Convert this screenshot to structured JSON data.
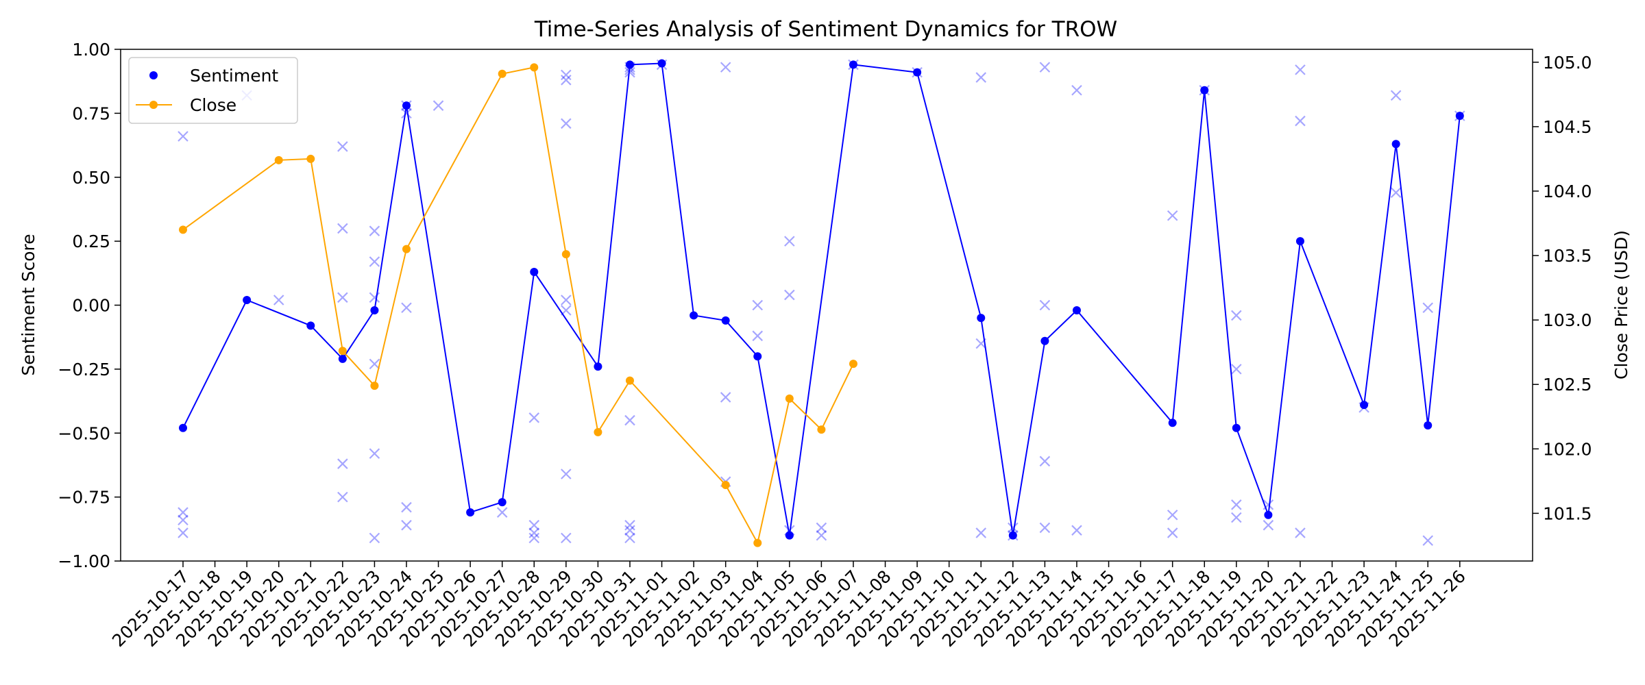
{
  "chart_data": {
    "type": "line",
    "title": "Time-Series Analysis of Sentiment Dynamics for TROW",
    "xlabel": "",
    "ylabel": "Sentiment Score",
    "y2label": "Close Price (USD)",
    "ylim": [
      -1.0,
      1.0
    ],
    "y2lim": [
      101.13,
      105.1
    ],
    "yticks": [
      -1.0,
      -0.75,
      -0.5,
      -0.25,
      0.0,
      0.25,
      0.5,
      0.75,
      1.0
    ],
    "yticklabels": [
      "−1.00",
      "−0.75",
      "−0.50",
      "−0.25",
      "0.00",
      "0.25",
      "0.50",
      "0.75",
      "1.00"
    ],
    "y2ticks": [
      101.5,
      102.0,
      102.5,
      103.0,
      103.5,
      104.0,
      104.5,
      105.0
    ],
    "y2ticklabels": [
      "101.5",
      "102.0",
      "102.5",
      "103.0",
      "103.5",
      "104.0",
      "104.5",
      "105.0"
    ],
    "categories": [
      "2025-10-17",
      "2025-10-18",
      "2025-10-19",
      "2025-10-20",
      "2025-10-21",
      "2025-10-22",
      "2025-10-23",
      "2025-10-24",
      "2025-10-25",
      "2025-10-26",
      "2025-10-27",
      "2025-10-28",
      "2025-10-29",
      "2025-10-30",
      "2025-10-31",
      "2025-11-01",
      "2025-11-02",
      "2025-11-03",
      "2025-11-04",
      "2025-11-05",
      "2025-11-06",
      "2025-11-07",
      "2025-11-08",
      "2025-11-09",
      "2025-11-10",
      "2025-11-11",
      "2025-11-12",
      "2025-11-13",
      "2025-11-14",
      "2025-11-15",
      "2025-11-16",
      "2025-11-17",
      "2025-11-18",
      "2025-11-19",
      "2025-11-20",
      "2025-11-21",
      "2025-11-22",
      "2025-11-23",
      "2025-11-24",
      "2025-11-25",
      "2025-11-26"
    ],
    "grid": false,
    "legend_position": "upper left",
    "series": [
      {
        "name": "Sentiment",
        "axis": "left",
        "color": "#0000ff",
        "style": "line-with-dots",
        "points": [
          [
            "2025-10-17",
            -0.48
          ],
          [
            "2025-10-19",
            0.02
          ],
          [
            "2025-10-21",
            -0.08
          ],
          [
            "2025-10-22",
            -0.21
          ],
          [
            "2025-10-23",
            -0.02
          ],
          [
            "2025-10-24",
            0.78
          ],
          [
            "2025-10-26",
            -0.81
          ],
          [
            "2025-10-27",
            -0.77
          ],
          [
            "2025-10-28",
            0.13
          ],
          [
            "2025-10-30",
            -0.24
          ],
          [
            "2025-10-31",
            0.94
          ],
          [
            "2025-11-01",
            0.945
          ],
          [
            "2025-11-02",
            -0.04
          ],
          [
            "2025-11-03",
            -0.06
          ],
          [
            "2025-11-04",
            -0.2
          ],
          [
            "2025-11-05",
            -0.9
          ],
          [
            "2025-11-07",
            0.94
          ],
          [
            "2025-11-09",
            0.91
          ],
          [
            "2025-11-11",
            -0.05
          ],
          [
            "2025-11-12",
            -0.9
          ],
          [
            "2025-11-13",
            -0.14
          ],
          [
            "2025-11-14",
            -0.02
          ],
          [
            "2025-11-17",
            -0.46
          ],
          [
            "2025-11-18",
            0.84
          ],
          [
            "2025-11-19",
            -0.48
          ],
          [
            "2025-11-20",
            -0.82
          ],
          [
            "2025-11-21",
            0.25
          ],
          [
            "2025-11-23",
            -0.39
          ],
          [
            "2025-11-24",
            0.63
          ],
          [
            "2025-11-25",
            -0.47
          ],
          [
            "2025-11-26",
            0.74
          ]
        ]
      },
      {
        "name": "Close",
        "axis": "right",
        "color": "#ffa500",
        "style": "line-with-dots",
        "points": [
          [
            "2025-10-17",
            103.7
          ],
          [
            "2025-10-20",
            104.24
          ],
          [
            "2025-10-21",
            104.25
          ],
          [
            "2025-10-22",
            102.76
          ],
          [
            "2025-10-23",
            102.49
          ],
          [
            "2025-10-24",
            103.55
          ],
          [
            "2025-10-27",
            104.91
          ],
          [
            "2025-10-28",
            104.96
          ],
          [
            "2025-10-29",
            103.51
          ],
          [
            "2025-10-30",
            102.13
          ],
          [
            "2025-10-31",
            102.53
          ],
          [
            "2025-11-03",
            101.72
          ],
          [
            "2025-11-04",
            101.27
          ],
          [
            "2025-11-05",
            102.39
          ],
          [
            "2025-11-06",
            102.15
          ],
          [
            "2025-11-07",
            102.66
          ]
        ]
      }
    ],
    "raw_scores": {
      "marker": "x",
      "color": "#0000ff",
      "opacity": 0.35,
      "points": [
        [
          "2025-10-17",
          0.66
        ],
        [
          "2025-10-17",
          -0.81
        ],
        [
          "2025-10-17",
          -0.84
        ],
        [
          "2025-10-17",
          -0.89
        ],
        [
          "2025-10-19",
          0.82
        ],
        [
          "2025-10-20",
          0.02
        ],
        [
          "2025-10-22",
          0.62
        ],
        [
          "2025-10-22",
          0.3
        ],
        [
          "2025-10-22",
          0.03
        ],
        [
          "2025-10-22",
          -0.62
        ],
        [
          "2025-10-22",
          -0.75
        ],
        [
          "2025-10-23",
          0.29
        ],
        [
          "2025-10-23",
          0.17
        ],
        [
          "2025-10-23",
          0.03
        ],
        [
          "2025-10-23",
          -0.23
        ],
        [
          "2025-10-23",
          -0.58
        ],
        [
          "2025-10-23",
          -0.91
        ],
        [
          "2025-10-24",
          0.78
        ],
        [
          "2025-10-24",
          0.75
        ],
        [
          "2025-10-24",
          -0.01
        ],
        [
          "2025-10-24",
          -0.79
        ],
        [
          "2025-10-24",
          -0.86
        ],
        [
          "2025-10-25",
          0.78
        ],
        [
          "2025-10-27",
          -0.81
        ],
        [
          "2025-10-28",
          -0.44
        ],
        [
          "2025-10-28",
          -0.86
        ],
        [
          "2025-10-28",
          -0.89
        ],
        [
          "2025-10-28",
          -0.91
        ],
        [
          "2025-10-29",
          0.9
        ],
        [
          "2025-10-29",
          0.88
        ],
        [
          "2025-10-29",
          0.71
        ],
        [
          "2025-10-29",
          0.02
        ],
        [
          "2025-10-29",
          -0.02
        ],
        [
          "2025-10-29",
          -0.66
        ],
        [
          "2025-10-29",
          -0.91
        ],
        [
          "2025-10-31",
          0.93
        ],
        [
          "2025-10-31",
          0.92
        ],
        [
          "2025-10-31",
          0.91
        ],
        [
          "2025-10-31",
          -0.45
        ],
        [
          "2025-10-31",
          -0.86
        ],
        [
          "2025-10-31",
          -0.88
        ],
        [
          "2025-10-31",
          -0.91
        ],
        [
          "2025-11-01",
          0.94
        ],
        [
          "2025-11-03",
          0.93
        ],
        [
          "2025-11-03",
          -0.36
        ],
        [
          "2025-11-03",
          -0.69
        ],
        [
          "2025-11-04",
          0.0
        ],
        [
          "2025-11-04",
          -0.12
        ],
        [
          "2025-11-05",
          0.25
        ],
        [
          "2025-11-05",
          0.04
        ],
        [
          "2025-11-05",
          -0.88
        ],
        [
          "2025-11-06",
          -0.87
        ],
        [
          "2025-11-06",
          -0.9
        ],
        [
          "2025-11-07",
          0.94
        ],
        [
          "2025-11-09",
          0.91
        ],
        [
          "2025-11-11",
          0.89
        ],
        [
          "2025-11-11",
          -0.15
        ],
        [
          "2025-11-11",
          -0.89
        ],
        [
          "2025-11-12",
          -0.87
        ],
        [
          "2025-11-12",
          -0.9
        ],
        [
          "2025-11-13",
          0.93
        ],
        [
          "2025-11-13",
          0.0
        ],
        [
          "2025-11-13",
          -0.61
        ],
        [
          "2025-11-13",
          -0.87
        ],
        [
          "2025-11-14",
          0.84
        ],
        [
          "2025-11-14",
          -0.88
        ],
        [
          "2025-11-17",
          0.35
        ],
        [
          "2025-11-17",
          -0.82
        ],
        [
          "2025-11-17",
          -0.89
        ],
        [
          "2025-11-18",
          0.84
        ],
        [
          "2025-11-19",
          -0.04
        ],
        [
          "2025-11-19",
          -0.25
        ],
        [
          "2025-11-19",
          -0.78
        ],
        [
          "2025-11-19",
          -0.83
        ],
        [
          "2025-11-20",
          -0.78
        ],
        [
          "2025-11-20",
          -0.86
        ],
        [
          "2025-11-21",
          0.92
        ],
        [
          "2025-11-21",
          0.72
        ],
        [
          "2025-11-21",
          -0.89
        ],
        [
          "2025-11-23",
          -0.4
        ],
        [
          "2025-11-24",
          0.82
        ],
        [
          "2025-11-24",
          0.44
        ],
        [
          "2025-11-25",
          -0.01
        ],
        [
          "2025-11-25",
          -0.92
        ],
        [
          "2025-11-26",
          0.74
        ]
      ]
    }
  }
}
